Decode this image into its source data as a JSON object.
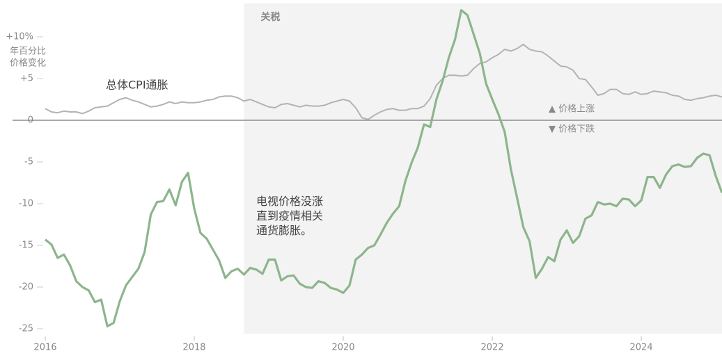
{
  "chart_data": {
    "type": "line",
    "y_unit_label": [
      "年百分比",
      "价格变化"
    ],
    "categories": [
      "2016",
      null,
      null,
      null,
      null,
      null,
      null,
      null,
      null,
      null,
      null,
      null,
      null,
      null,
      null,
      null,
      null,
      null,
      null,
      null,
      null,
      null,
      null,
      null,
      "2018",
      null,
      null,
      null,
      null,
      null,
      null,
      null,
      null,
      null,
      null,
      null,
      null,
      null,
      null,
      null,
      null,
      null,
      null,
      null,
      null,
      null,
      null,
      null,
      "2020",
      null,
      null,
      null,
      null,
      null,
      null,
      null,
      null,
      null,
      null,
      null,
      null,
      null,
      null,
      null,
      null,
      null,
      null,
      null,
      null,
      null,
      null,
      null,
      "2022",
      null,
      null,
      null,
      null,
      null,
      null,
      null,
      null,
      null,
      null,
      null,
      null,
      null,
      null,
      null,
      null,
      null,
      null,
      null,
      null,
      null,
      null,
      null,
      "2024",
      null,
      null,
      null,
      null,
      null,
      null,
      null,
      null,
      null,
      null,
      null,
      null,
      null
    ],
    "series": [
      {
        "name": "总体CPI通胀",
        "color": "#b3b3b3",
        "values": [
          1.4,
          1.0,
          0.9,
          1.1,
          1.0,
          1.0,
          0.8,
          1.1,
          1.5,
          1.6,
          1.7,
          2.1,
          2.5,
          2.7,
          2.4,
          2.2,
          1.9,
          1.6,
          1.7,
          1.9,
          2.2,
          2.0,
          2.2,
          2.1,
          2.1,
          2.2,
          2.4,
          2.5,
          2.8,
          2.9,
          2.9,
          2.7,
          2.3,
          2.5,
          2.2,
          1.9,
          1.6,
          1.5,
          1.9,
          2.0,
          1.8,
          1.6,
          1.8,
          1.7,
          1.7,
          1.8,
          2.1,
          2.3,
          2.5,
          2.3,
          1.5,
          0.3,
          0.1,
          0.6,
          1.0,
          1.3,
          1.4,
          1.2,
          1.2,
          1.4,
          1.4,
          1.7,
          2.6,
          4.2,
          5.0,
          5.4,
          5.4,
          5.3,
          5.4,
          6.2,
          6.8,
          7.0,
          7.5,
          7.9,
          8.5,
          8.3,
          8.6,
          9.1,
          8.5,
          8.3,
          8.2,
          7.7,
          7.1,
          6.5,
          6.4,
          6.0,
          5.0,
          4.9,
          4.0,
          3.0,
          3.2,
          3.7,
          3.7,
          3.2,
          3.1,
          3.4,
          3.1,
          3.2,
          3.5,
          3.4,
          3.3,
          3.0,
          2.9,
          2.5,
          2.4,
          2.6,
          2.7,
          2.9,
          3.0,
          2.8
        ]
      },
      {
        "name": "电视价格没涨\n直到疫情相关\n通货膨胀。",
        "color": "#8db58c",
        "values": [
          -14.3,
          -14.9,
          -16.5,
          -16.1,
          -17.4,
          -19.3,
          -20,
          -20.4,
          -21.8,
          -21.5,
          -24.7,
          -24.3,
          -21.7,
          -19.8,
          -18.8,
          -17.8,
          -15.8,
          -11.3,
          -9.8,
          -9.7,
          -8.3,
          -10.2,
          -7.4,
          -6.3,
          -10.6,
          -13.5,
          -14.2,
          -15.5,
          -16.8,
          -18.9,
          -18.1,
          -17.8,
          -18.5,
          -17.7,
          -17.9,
          -18.4,
          -16.7,
          -16.7,
          -19.2,
          -18.7,
          -18.6,
          -19.6,
          -20,
          -20.1,
          -19.3,
          -19.5,
          -20.1,
          -20.3,
          -20.7,
          -19.8,
          -16.7,
          -16.1,
          -15.3,
          -15,
          -13.7,
          -12.3,
          -11.2,
          -10.3,
          -7.3,
          -5.1,
          -3.3,
          -0.5,
          -0.8,
          2.5,
          4.7,
          7.5,
          9.7,
          13.2,
          12.6,
          10.3,
          8,
          4.4,
          2.5,
          0.7,
          -1.4,
          -5.9,
          -9.3,
          -12.8,
          -14.5,
          -18.9,
          -17.8,
          -16.4,
          -16.9,
          -14.3,
          -13.2,
          -14.7,
          -13.9,
          -11.8,
          -11.4,
          -9.8,
          -10.1,
          -10,
          -10.3,
          -9.4,
          -9.5,
          -10.3,
          -9.6,
          -6.8,
          -6.8,
          -8.1,
          -6.5,
          -5.5,
          -5.3,
          -5.6,
          -5.5,
          -4.5,
          -4,
          -4.2,
          -6.7,
          -8.7
        ]
      }
    ],
    "shade": {
      "label": "关税",
      "start": 32
    },
    "direction_labels": [
      "▲ 价格上涨",
      "▼ 价格下跌"
    ],
    "ylim": [
      -26.5,
      14
    ],
    "yticks": [
      {
        "value": 10,
        "label": "+10%"
      },
      {
        "value": 5,
        "label": "+5"
      },
      0,
      -5,
      -10,
      -15,
      -20,
      -25
    ],
    "grid": false
  }
}
